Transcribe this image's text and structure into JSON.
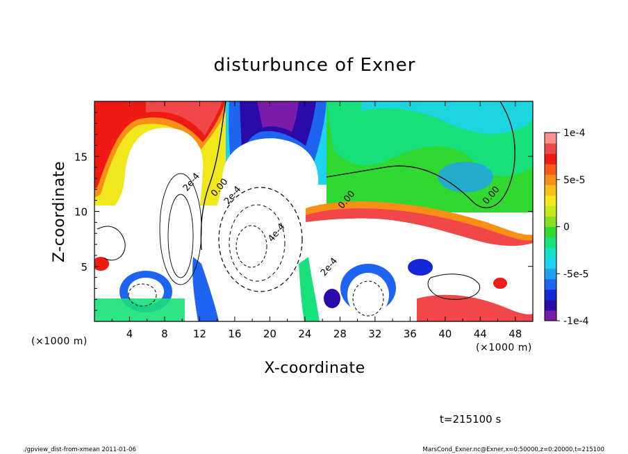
{
  "chart_data": {
    "type": "heatmap",
    "title": "disturbunce of Exner",
    "xlabel": "X-coordinate",
    "ylabel": "Z-coordinate",
    "x_unit_left": "(×1000 m)",
    "x_unit_right": "(×1000 m)",
    "xlim": [
      0,
      50
    ],
    "ylim": [
      0,
      20
    ],
    "x_ticks": [
      4,
      8,
      12,
      16,
      20,
      24,
      28,
      32,
      36,
      40,
      44,
      48
    ],
    "y_ticks": [
      5,
      10,
      15
    ],
    "colorbar": {
      "min": -0.0001,
      "max": 0.0001,
      "labels": [
        {
          "value": 0.0001,
          "text": "1e-4"
        },
        {
          "value": 5e-05,
          "text": "5e-5"
        },
        {
          "value": 0,
          "text": "0"
        },
        {
          "value": -5e-05,
          "text": "-5e-5"
        },
        {
          "value": -0.0001,
          "text": "-1e-4"
        }
      ],
      "colors": [
        "#7a1aa8",
        "#2a0aa8",
        "#1428d8",
        "#1e64f0",
        "#22a0f0",
        "#1ed2f0",
        "#16e0c8",
        "#18e07a",
        "#30d830",
        "#86e020",
        "#c6e81c",
        "#f0e81c",
        "#f8c01c",
        "#f89018",
        "#f85a14",
        "#f01a14",
        "#f04848",
        "#f89090"
      ]
    },
    "contour_labels": [
      {
        "text": "0.00",
        "x": 14.5,
        "z": 12.0
      },
      {
        "text": "2e-4",
        "x": 11.3,
        "z": 12.5
      },
      {
        "text": "2e-4",
        "x": 16.0,
        "z": 11.3
      },
      {
        "text": "4e-4",
        "x": 21.0,
        "z": 7.9
      },
      {
        "text": "0.00",
        "x": 29.0,
        "z": 10.9
      },
      {
        "text": "0.00",
        "x": 45.5,
        "z": 11.3
      },
      {
        "text": "2e-4",
        "x": 27.0,
        "z": 4.8
      }
    ],
    "annotation_time": "t=215100 s",
    "footer_left": "./gpview_dist-from-xmean  2011-01-06",
    "footer_right": "MarsCond_Exner.nc@Exner,x=0:50000,z=0:20000,t=215100"
  }
}
